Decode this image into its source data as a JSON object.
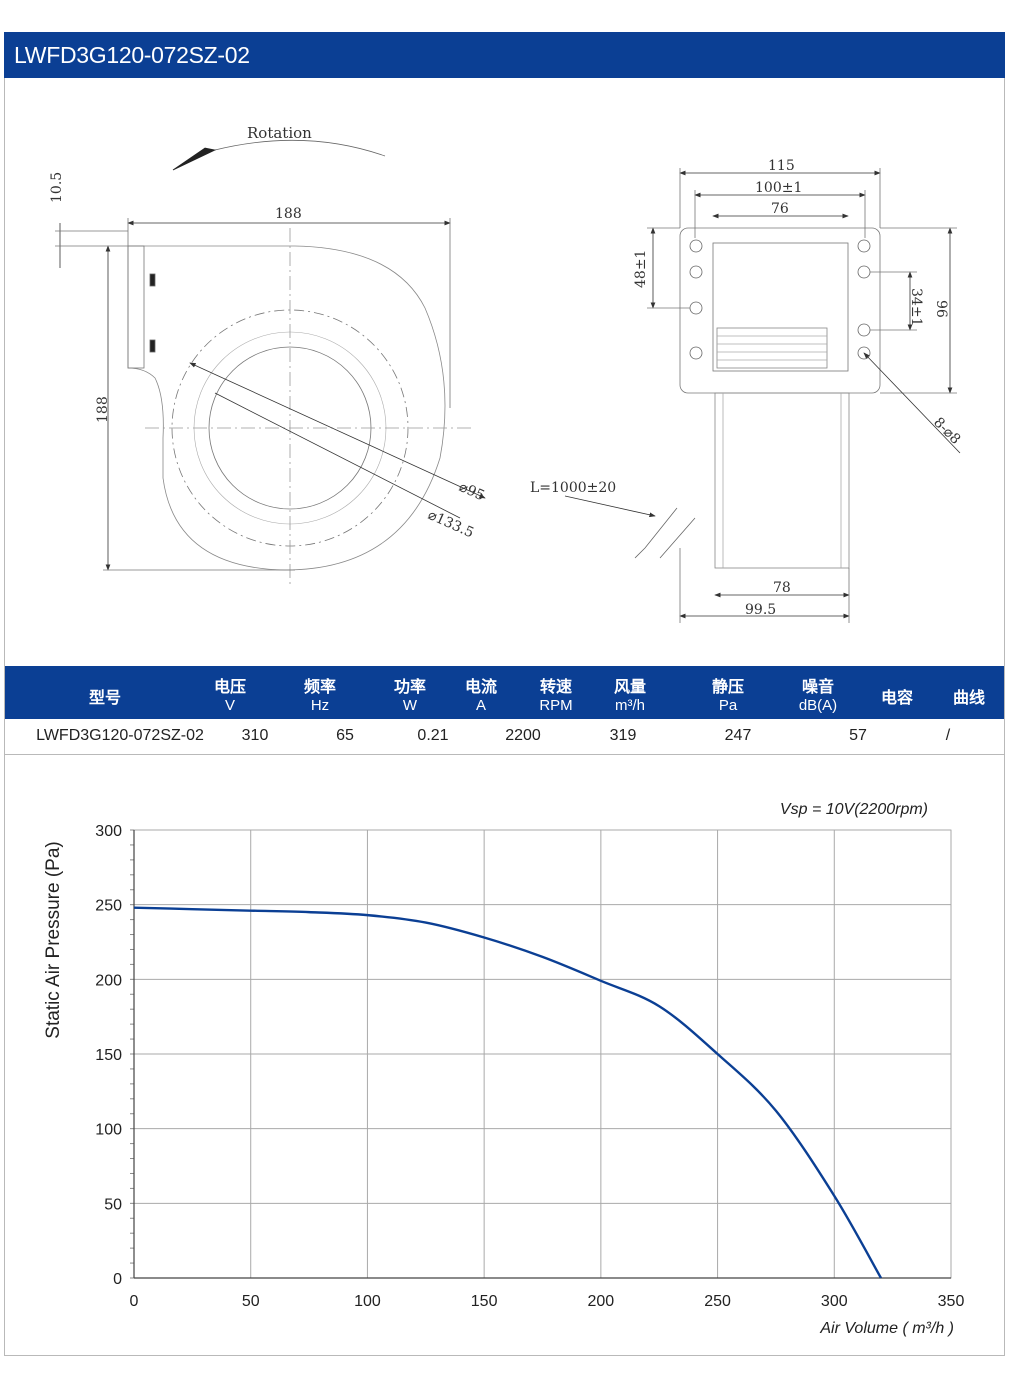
{
  "header": {
    "title": "LWFD3G120-072SZ-02"
  },
  "drawing": {
    "rotation_label": "Rotation",
    "dims": {
      "d10_5": "10.5",
      "d188_top": "188",
      "d188_side": "188",
      "d95": "⌀95",
      "d133_5": "⌀133.5",
      "d115": "115",
      "d100": "100±1",
      "d76": "76",
      "d48": "48±1",
      "d34": "34±1",
      "d96": "96",
      "holes": "8-⌀8",
      "cable": "L=1000±20",
      "d78": "78",
      "d99_5": "99.5"
    }
  },
  "spec_table": {
    "headers": [
      {
        "label": "型号",
        "unit": ""
      },
      {
        "label": "电压",
        "unit": "V"
      },
      {
        "label": "频率",
        "unit": "Hz"
      },
      {
        "label": "功率",
        "unit": "W"
      },
      {
        "label": "电流",
        "unit": "A"
      },
      {
        "label": "转速",
        "unit": "RPM"
      },
      {
        "label": "风量",
        "unit": "m³/h"
      },
      {
        "label": "静压",
        "unit": "Pa"
      },
      {
        "label": "噪音",
        "unit": "dB(A)"
      },
      {
        "label": "电容",
        "unit": ""
      },
      {
        "label": "曲线",
        "unit": ""
      }
    ],
    "row": {
      "model": "LWFD3G120-072SZ-02",
      "voltage": "310",
      "frequency": "65",
      "power": "0.21",
      "speed": "2200",
      "airflow": "319",
      "pressure": "247",
      "noise": "57",
      "curve": "/"
    }
  },
  "chart_data": {
    "type": "line",
    "annotation": "Vsp = 10V(2200rpm)",
    "xlabel": "Air Volume ( m³/h )",
    "ylabel": "Static Air Pressure  (Pa)",
    "xlim": [
      0,
      350
    ],
    "ylim": [
      0,
      300
    ],
    "xticks": [
      0,
      50,
      100,
      150,
      200,
      250,
      300,
      350
    ],
    "yticks": [
      0,
      50,
      100,
      150,
      200,
      250,
      300
    ],
    "grid": true,
    "line_color": "#0b3f94",
    "series": [
      {
        "x": [
          0,
          25,
          50,
          75,
          100,
          125,
          150,
          175,
          200,
          225,
          250,
          275,
          300,
          320
        ],
        "y": [
          248,
          247,
          246,
          245,
          243,
          238,
          228,
          215,
          199,
          182,
          150,
          112,
          55,
          0
        ]
      }
    ]
  }
}
